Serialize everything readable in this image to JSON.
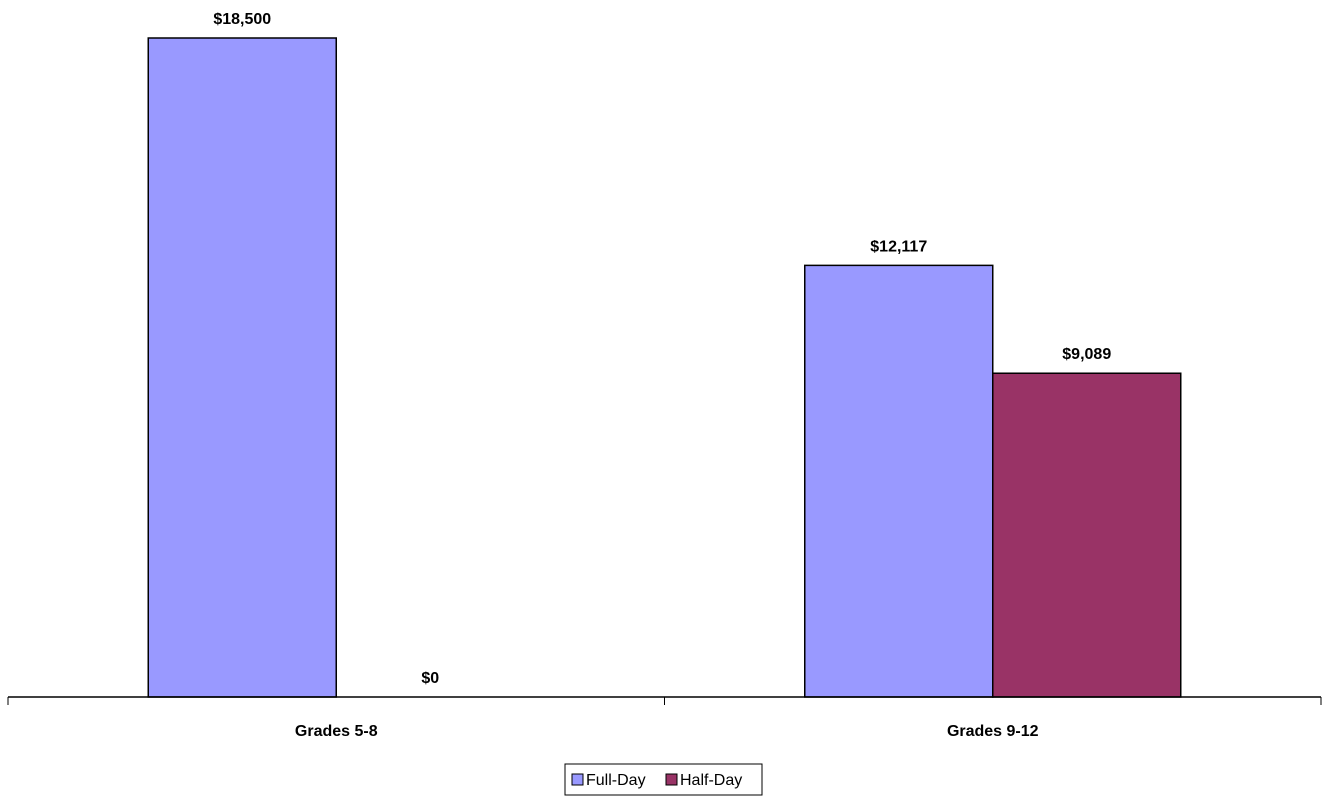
{
  "chart_data": {
    "type": "bar",
    "title": "",
    "xlabel": "",
    "ylabel": "",
    "categories": [
      "Grades 5-8",
      "Grades 9-12"
    ],
    "series": [
      {
        "name": "Full-Day",
        "color": "#9999FF",
        "values": [
          18500,
          12117
        ],
        "labels": [
          "$18,500",
          "$12,117"
        ]
      },
      {
        "name": "Half-Day",
        "color": "#993366",
        "values": [
          0,
          9089
        ],
        "labels": [
          "$0",
          "$9,089"
        ]
      }
    ],
    "ylim": [
      0,
      18500
    ],
    "grid": false,
    "legend_position": "bottom"
  }
}
